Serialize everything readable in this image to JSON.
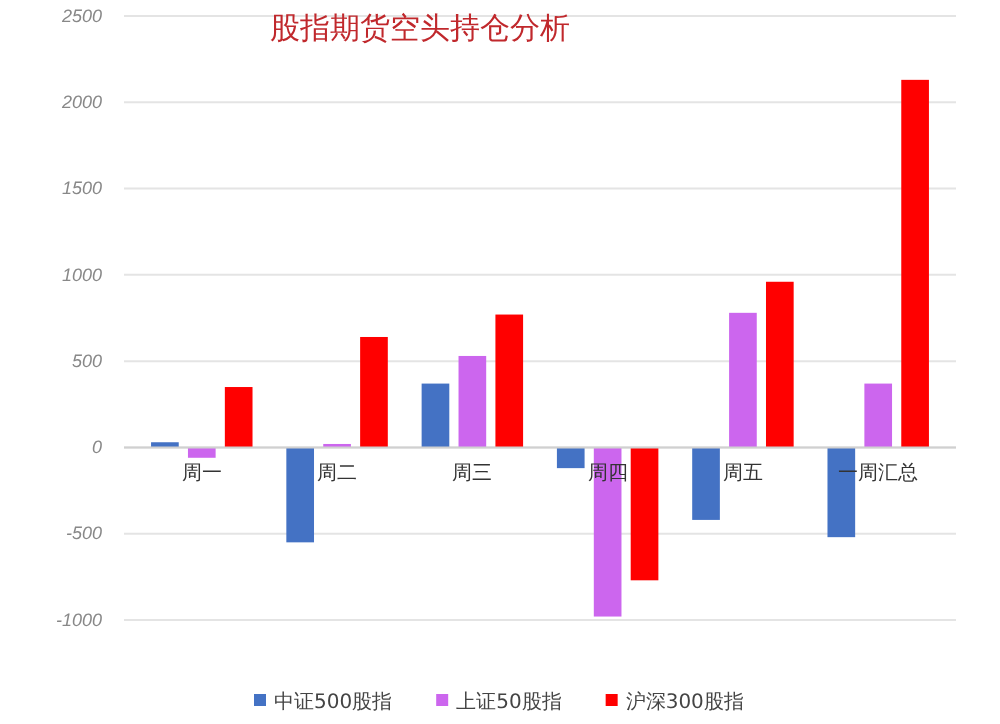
{
  "chart_data": {
    "type": "bar",
    "title": "股指期货空头持仓分析",
    "categories": [
      "周一",
      "周二",
      "周三",
      "周四",
      "周五",
      "一周汇总"
    ],
    "series": [
      {
        "name": "中证500股指",
        "color": "#4472c4",
        "values": [
          30,
          -550,
          370,
          -120,
          -420,
          -520
        ]
      },
      {
        "name": "上证50股指",
        "color": "#cc66ee",
        "values": [
          -60,
          20,
          530,
          -980,
          780,
          370
        ]
      },
      {
        "name": "沪深300股指",
        "color": "#ff0000",
        "values": [
          350,
          640,
          770,
          -770,
          960,
          2130
        ]
      }
    ],
    "ylim": [
      -1000,
      2500
    ],
    "yticks": [
      -1000,
      -500,
      0,
      500,
      1000,
      1500,
      2000,
      2500
    ],
    "grid": "y",
    "legend": "bottom"
  }
}
